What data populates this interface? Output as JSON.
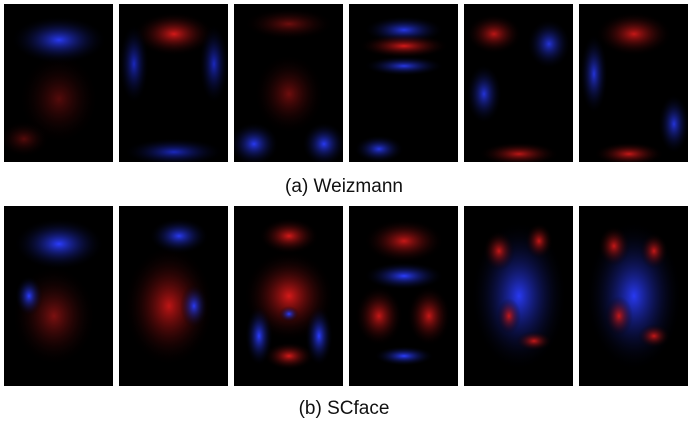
{
  "figure": {
    "rows": [
      {
        "id": "weizmann",
        "caption": "(a) Weizmann",
        "tiles": [
          {
            "label": "weizmann-face-1"
          },
          {
            "label": "weizmann-face-2"
          },
          {
            "label": "weizmann-face-3"
          },
          {
            "label": "weizmann-face-4"
          },
          {
            "label": "weizmann-face-5"
          },
          {
            "label": "weizmann-face-6"
          }
        ]
      },
      {
        "id": "scface",
        "caption": "(b) SCface",
        "tiles": [
          {
            "label": "scface-face-1"
          },
          {
            "label": "scface-face-2"
          },
          {
            "label": "scface-face-3"
          },
          {
            "label": "scface-face-4"
          },
          {
            "label": "scface-face-5"
          },
          {
            "label": "scface-face-6"
          }
        ]
      }
    ],
    "colors": {
      "positive": "#d01818",
      "negative": "#1a2cff",
      "background": "#000000"
    }
  }
}
